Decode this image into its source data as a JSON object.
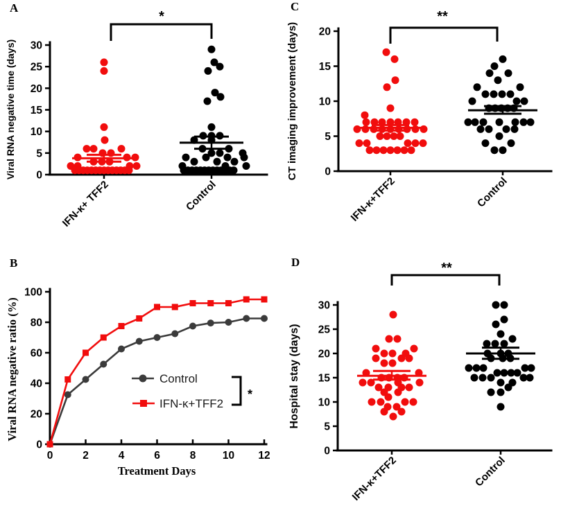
{
  "figure": {
    "background": "#ffffff"
  },
  "colors": {
    "treatment_red": "#f10d0d",
    "control_black": "#000000",
    "control_line_gray": "#3b3b3b",
    "axis": "#000000"
  },
  "chart_data": [
    {
      "panel_label": "A",
      "type": "scatter-dot",
      "ylabel": "Viral RNA negative time (days)",
      "ylim": [
        0,
        30
      ],
      "yticks": [
        0,
        5,
        10,
        15,
        20,
        25,
        30
      ],
      "significance": "*",
      "groups": [
        {
          "name": "IFN-κ+ TFF2",
          "color": "#f10d0d",
          "mean": 3.8,
          "sem_high": 4.6,
          "sem_low": 3.0,
          "points": [
            [
              0,
              26
            ],
            [
              0,
              24
            ],
            [
              0,
              11
            ],
            [
              1,
              8
            ],
            [
              -25,
              6
            ],
            [
              -15,
              6
            ],
            [
              25,
              6
            ],
            [
              -2,
              5
            ],
            [
              10,
              5
            ],
            [
              -38,
              4
            ],
            [
              33,
              4
            ],
            [
              45,
              4
            ],
            [
              -15,
              3
            ],
            [
              -3,
              3
            ],
            [
              8,
              3
            ],
            [
              -48,
              2
            ],
            [
              -38,
              2
            ],
            [
              37,
              2
            ],
            [
              47,
              2
            ],
            [
              -42,
              1
            ],
            [
              -36,
              1
            ],
            [
              -30,
              1
            ],
            [
              -24,
              1
            ],
            [
              -18,
              1
            ],
            [
              -12,
              1
            ],
            [
              -6,
              1
            ],
            [
              0,
              1
            ],
            [
              6,
              1
            ],
            [
              12,
              1
            ],
            [
              18,
              1
            ],
            [
              24,
              1
            ],
            [
              30,
              1
            ],
            [
              36,
              1
            ]
          ]
        },
        {
          "name": "Control",
          "color": "#000000",
          "mean": 7.4,
          "sem_high": 8.8,
          "sem_low": 6.0,
          "points": [
            [
              0,
              29
            ],
            [
              4,
              26
            ],
            [
              12,
              25
            ],
            [
              -5,
              24
            ],
            [
              5,
              19
            ],
            [
              13,
              18
            ],
            [
              -6,
              17
            ],
            [
              0,
              11
            ],
            [
              -12,
              9
            ],
            [
              0,
              9
            ],
            [
              12,
              9
            ],
            [
              -25,
              8
            ],
            [
              0,
              8
            ],
            [
              -13,
              6
            ],
            [
              25,
              6
            ],
            [
              0,
              5
            ],
            [
              12,
              5
            ],
            [
              45,
              5
            ],
            [
              -37,
              4
            ],
            [
              -8,
              4
            ],
            [
              23,
              4
            ],
            [
              47,
              4
            ],
            [
              -25,
              3
            ],
            [
              8,
              3
            ],
            [
              33,
              3
            ],
            [
              -42,
              2
            ],
            [
              20,
              2
            ],
            [
              50,
              2
            ],
            [
              -40,
              1
            ],
            [
              -34,
              1
            ],
            [
              -28,
              1
            ],
            [
              -22,
              1
            ],
            [
              -16,
              1
            ],
            [
              -10,
              1
            ],
            [
              -4,
              1
            ],
            [
              2,
              1
            ],
            [
              8,
              1
            ],
            [
              14,
              1
            ],
            [
              20,
              1
            ],
            [
              26,
              1
            ],
            [
              32,
              1
            ]
          ]
        }
      ]
    },
    {
      "panel_label": "B",
      "type": "line",
      "xlabel": "Treatment Days",
      "ylabel": "Viral RNA negative ratio (%)",
      "xlim": [
        0,
        12
      ],
      "ylim": [
        0,
        100
      ],
      "xticks": [
        0,
        2,
        4,
        6,
        8,
        10,
        12
      ],
      "yticks": [
        0,
        20,
        40,
        60,
        80,
        100
      ],
      "significance": "*",
      "x": [
        0,
        1,
        2,
        3,
        4,
        5,
        6,
        7,
        8,
        9,
        10,
        11,
        12
      ],
      "series": [
        {
          "name": "Control",
          "marker": "circle",
          "color": "#3b3b3b",
          "values": [
            0,
            32.5,
            42.5,
            52.5,
            62.5,
            67.5,
            70,
            72.5,
            77.5,
            79.5,
            80,
            82.5,
            82.5
          ]
        },
        {
          "name": "IFN-κ+TFF2",
          "marker": "square",
          "color": "#f10d0d",
          "values": [
            0,
            42.5,
            60,
            70,
            77.5,
            82.5,
            90,
            90,
            92.5,
            92.5,
            92.5,
            95,
            95
          ]
        }
      ],
      "legend_position": "center-right"
    },
    {
      "panel_label": "C",
      "type": "scatter-dot",
      "ylabel": "CT imaging improvement (days)",
      "ylim": [
        0,
        20
      ],
      "yticks": [
        0,
        5,
        10,
        15,
        20
      ],
      "significance": "**",
      "groups": [
        {
          "name": "IFN-κ+TFF2",
          "color": "#f10d0d",
          "mean": 6.2,
          "sem_high": 6.6,
          "sem_low": 5.8,
          "points": [
            [
              -6,
              17
            ],
            [
              6,
              16
            ],
            [
              7,
              13
            ],
            [
              -5,
              12
            ],
            [
              0,
              9
            ],
            [
              -37,
              8
            ],
            [
              -35,
              7
            ],
            [
              -23,
              7
            ],
            [
              -12,
              7
            ],
            [
              0,
              7
            ],
            [
              11,
              7
            ],
            [
              23,
              7
            ],
            [
              35,
              7
            ],
            [
              -48,
              6
            ],
            [
              -36,
              6
            ],
            [
              -24,
              6
            ],
            [
              -12,
              6
            ],
            [
              0,
              6
            ],
            [
              12,
              6
            ],
            [
              24,
              6
            ],
            [
              36,
              6
            ],
            [
              48,
              6
            ],
            [
              -15,
              5
            ],
            [
              -5,
              5
            ],
            [
              5,
              5
            ],
            [
              14,
              5
            ],
            [
              -45,
              4
            ],
            [
              -34,
              4
            ],
            [
              25,
              4
            ],
            [
              36,
              4
            ],
            [
              47,
              4
            ],
            [
              -30,
              3
            ],
            [
              -20,
              3
            ],
            [
              -10,
              3
            ],
            [
              0,
              3
            ],
            [
              10,
              3
            ],
            [
              20,
              3
            ],
            [
              30,
              3
            ]
          ]
        },
        {
          "name": "Control",
          "color": "#000000",
          "mean": 8.7,
          "sem_high": 9.3,
          "sem_low": 8.2,
          "points": [
            [
              0,
              16
            ],
            [
              -12,
              15
            ],
            [
              -19,
              14
            ],
            [
              8,
              14
            ],
            [
              -7,
              13
            ],
            [
              -37,
              12
            ],
            [
              25,
              12
            ],
            [
              -25,
              11
            ],
            [
              -13,
              11
            ],
            [
              -1,
              11
            ],
            [
              11,
              11
            ],
            [
              -44,
              10
            ],
            [
              20,
              10
            ],
            [
              31,
              10
            ],
            [
              -20,
              9
            ],
            [
              -11,
              9
            ],
            [
              -2,
              9
            ],
            [
              7,
              9
            ],
            [
              16,
              9
            ],
            [
              -50,
              7
            ],
            [
              -40,
              7
            ],
            [
              -28,
              7
            ],
            [
              -5,
              7
            ],
            [
              18,
              7
            ],
            [
              30,
              7
            ],
            [
              40,
              7
            ],
            [
              -32,
              6
            ],
            [
              -20,
              6
            ],
            [
              5,
              6
            ],
            [
              17,
              6
            ],
            [
              -5,
              5
            ],
            [
              -25,
              4
            ],
            [
              12,
              4
            ],
            [
              -12,
              3
            ],
            [
              0,
              3
            ]
          ]
        }
      ]
    },
    {
      "panel_label": "D",
      "type": "scatter-dot",
      "ylabel": "Hospital stay (days)",
      "ylim": [
        0,
        30
      ],
      "yticks": [
        0,
        5,
        10,
        15,
        20,
        25,
        30
      ],
      "significance": "**",
      "groups": [
        {
          "name": "IFN-κ+TFF2",
          "color": "#f10d0d",
          "mean": 15.4,
          "sem_high": 16.4,
          "sem_low": 14.6,
          "points": [
            [
              2,
              28
            ],
            [
              -4,
              23
            ],
            [
              8,
              23
            ],
            [
              -23,
              21
            ],
            [
              32,
              21
            ],
            [
              -11,
              20
            ],
            [
              1,
              20
            ],
            [
              20,
              20
            ],
            [
              -23,
              19
            ],
            [
              14,
              19
            ],
            [
              25,
              19
            ],
            [
              -11,
              18
            ],
            [
              1,
              18
            ],
            [
              -37,
              16
            ],
            [
              39,
              16
            ],
            [
              -15,
              15
            ],
            [
              -4,
              15
            ],
            [
              8,
              15
            ],
            [
              18,
              15
            ],
            [
              -42,
              14
            ],
            [
              -30,
              14
            ],
            [
              9,
              14
            ],
            [
              40,
              14
            ],
            [
              -19,
              13
            ],
            [
              -5,
              13
            ],
            [
              14,
              13
            ],
            [
              25,
              13
            ],
            [
              -11,
              12
            ],
            [
              9,
              12
            ],
            [
              -5,
              11
            ],
            [
              -29,
              10
            ],
            [
              -16,
              10
            ],
            [
              19,
              10
            ],
            [
              31,
              10
            ],
            [
              -6,
              9
            ],
            [
              7,
              9
            ],
            [
              -11,
              8
            ],
            [
              14,
              8
            ],
            [
              2,
              7
            ]
          ]
        },
        {
          "name": "Control",
          "color": "#000000",
          "mean": 20.0,
          "sem_high": 21.2,
          "sem_low": 18.9,
          "points": [
            [
              -7,
              30
            ],
            [
              5,
              30
            ],
            [
              5,
              27
            ],
            [
              -7,
              26
            ],
            [
              0,
              24
            ],
            [
              17,
              23
            ],
            [
              -20,
              22
            ],
            [
              -8,
              22
            ],
            [
              5,
              22
            ],
            [
              -19,
              20
            ],
            [
              0,
              20
            ],
            [
              11,
              20
            ],
            [
              -14,
              19
            ],
            [
              3,
              19
            ],
            [
              14,
              19
            ],
            [
              -46,
              17
            ],
            [
              -35,
              17
            ],
            [
              -25,
              17
            ],
            [
              35,
              17
            ],
            [
              44,
              17
            ],
            [
              -5,
              16
            ],
            [
              5,
              16
            ],
            [
              15,
              16
            ],
            [
              24,
              16
            ],
            [
              -38,
              15
            ],
            [
              -26,
              15
            ],
            [
              -14,
              15
            ],
            [
              33,
              15
            ],
            [
              42,
              15
            ],
            [
              0,
              14
            ],
            [
              17,
              14
            ],
            [
              11,
              13
            ],
            [
              -14,
              12
            ],
            [
              0,
              12
            ],
            [
              0,
              9
            ]
          ]
        }
      ]
    }
  ]
}
